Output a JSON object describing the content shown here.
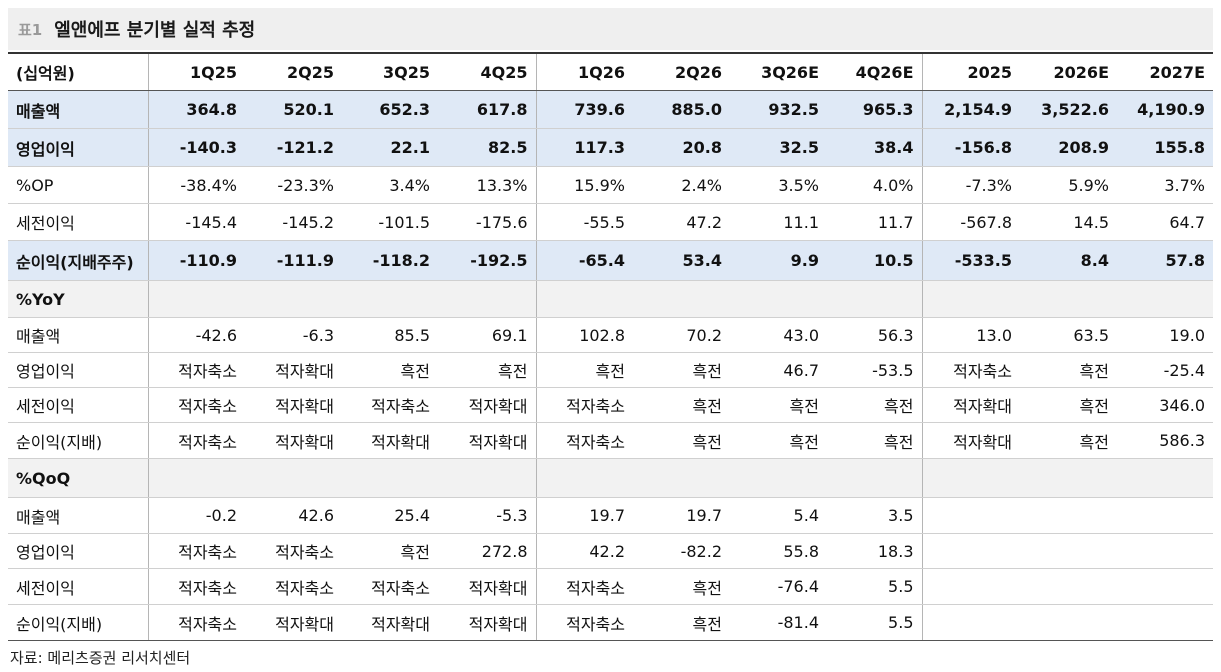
{
  "title": {
    "prefix": "표1",
    "text": "엘앤에프 분기별 실적 추정"
  },
  "table": {
    "header": [
      "(십억원)",
      "1Q25",
      "2Q25",
      "3Q25",
      "4Q25",
      "1Q26",
      "2Q26",
      "3Q26E",
      "4Q26E",
      "2025",
      "2026E",
      "2027E"
    ],
    "rows": [
      [
        "매출액",
        "364.8",
        "520.1",
        "652.3",
        "617.8",
        "739.6",
        "885.0",
        "932.5",
        "965.3",
        "2,154.9",
        "3,522.6",
        "4,190.9"
      ],
      [
        "영업이익",
        "-140.3",
        "-121.2",
        "22.1",
        "82.5",
        "117.3",
        "20.8",
        "32.5",
        "38.4",
        "-156.8",
        "208.9",
        "155.8"
      ],
      [
        "%OP",
        "-38.4%",
        "-23.3%",
        "3.4%",
        "13.3%",
        "15.9%",
        "2.4%",
        "3.5%",
        "4.0%",
        "-7.3%",
        "5.9%",
        "3.7%"
      ],
      [
        "세전이익",
        "-145.4",
        "-145.2",
        "-101.5",
        "-175.6",
        "-55.5",
        "47.2",
        "11.1",
        "11.7",
        "-567.8",
        "14.5",
        "64.7"
      ],
      [
        "순이익(지배주주)",
        "-110.9",
        "-111.9",
        "-118.2",
        "-192.5",
        "-65.4",
        "53.4",
        "9.9",
        "10.5",
        "-533.5",
        "8.4",
        "57.8"
      ],
      [
        "%YoY"
      ],
      [
        "매출액",
        "-42.6",
        "-6.3",
        "85.5",
        "69.1",
        "102.8",
        "70.2",
        "43.0",
        "56.3",
        "13.0",
        "63.5",
        "19.0"
      ],
      [
        "영업이익",
        "적자축소",
        "적자확대",
        "흑전",
        "흑전",
        "흑전",
        "흑전",
        "46.7",
        "-53.5",
        "적자축소",
        "흑전",
        "-25.4"
      ],
      [
        "세전이익",
        "적자축소",
        "적자확대",
        "적자축소",
        "적자확대",
        "적자축소",
        "흑전",
        "흑전",
        "흑전",
        "적자확대",
        "흑전",
        "346.0"
      ],
      [
        "순이익(지배)",
        "적자축소",
        "적자확대",
        "적자확대",
        "적자확대",
        "적자축소",
        "흑전",
        "흑전",
        "흑전",
        "적자확대",
        "흑전",
        "586.3"
      ],
      [
        "%QoQ"
      ],
      [
        "매출액",
        "-0.2",
        "42.6",
        "25.4",
        "-5.3",
        "19.7",
        "19.7",
        "5.4",
        "3.5"
      ],
      [
        "영업이익",
        "적자축소",
        "적자축소",
        "흑전",
        "272.8",
        "42.2",
        "-82.2",
        "55.8",
        "18.3"
      ],
      [
        "세전이익",
        "적자축소",
        "적자축소",
        "적자축소",
        "적자확대",
        "적자축소",
        "흑전",
        "-76.4",
        "5.5"
      ],
      [
        "순이익(지배)",
        "적자축소",
        "적자확대",
        "적자확대",
        "적자확대",
        "적자축소",
        "흑전",
        "-81.4",
        "5.5"
      ]
    ]
  },
  "source": "자료: 메리츠증권 리서치센터"
}
